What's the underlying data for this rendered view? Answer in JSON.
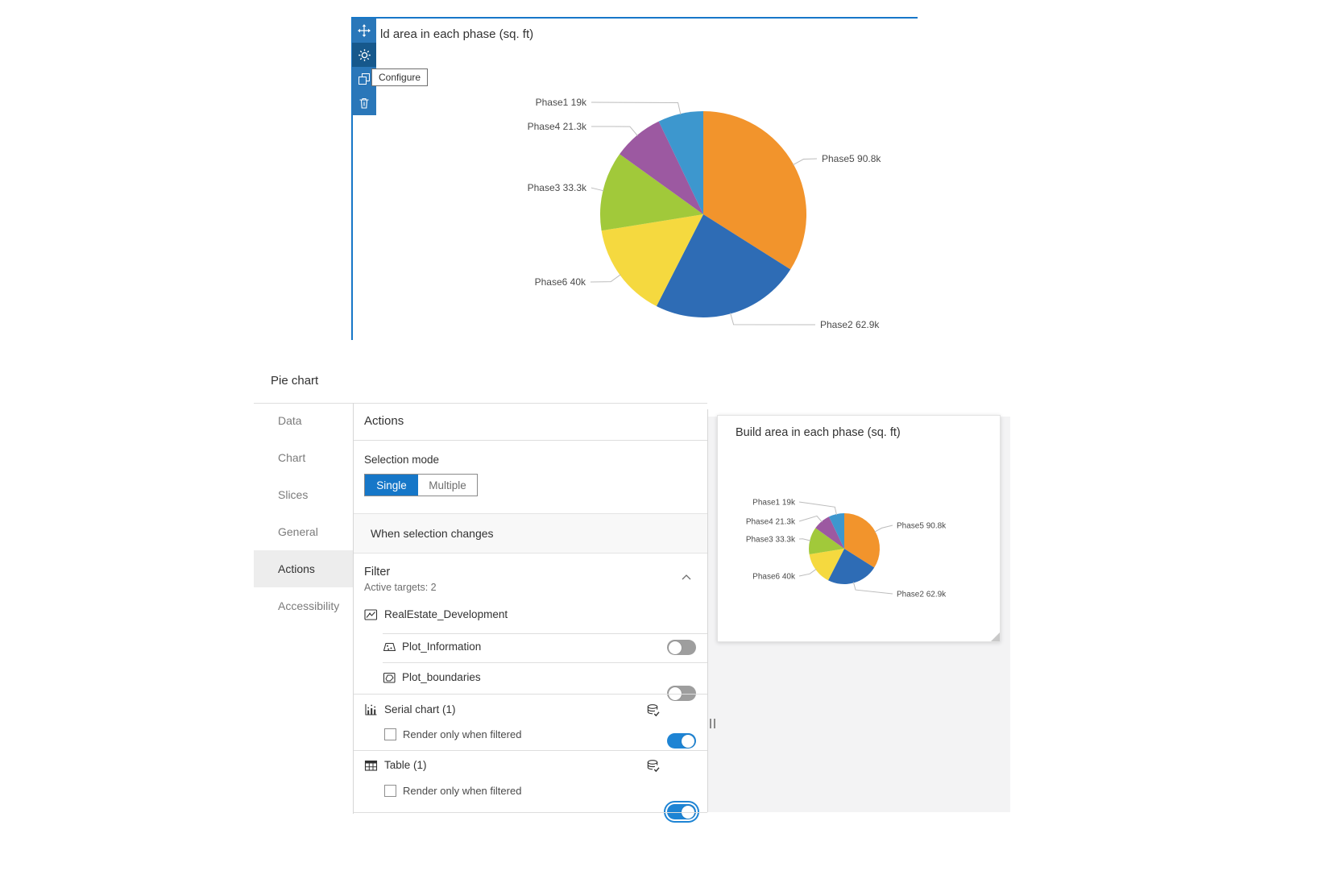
{
  "widget": {
    "title": "ld area in each phase (sq. ft)",
    "tooltip": "Configure"
  },
  "chart_data": {
    "type": "pie",
    "title": "Build area in each phase (sq. ft)",
    "start_angle_deg": 0,
    "direction": "clockwise",
    "legend": "none",
    "slices": [
      {
        "name": "Phase5",
        "value": 90.8,
        "label": "Phase5 90.8k",
        "color": "#F2942C"
      },
      {
        "name": "Phase2",
        "value": 62.9,
        "label": "Phase2 62.9k",
        "color": "#2E6CB5"
      },
      {
        "name": "Phase6",
        "value": 40.0,
        "label": "Phase6 40k",
        "color": "#F5D93F"
      },
      {
        "name": "Phase3",
        "value": 33.3,
        "label": "Phase3 33.3k",
        "color": "#A1C93A"
      },
      {
        "name": "Phase4",
        "value": 21.3,
        "label": "Phase4 21.3k",
        "color": "#9C59A1"
      },
      {
        "name": "Phase1",
        "value": 19.0,
        "label": "Phase1 19k",
        "color": "#3D97CE"
      }
    ]
  },
  "config_panel": {
    "heading": "Pie chart",
    "tabs": [
      {
        "label": "Data",
        "selected": false
      },
      {
        "label": "Chart",
        "selected": false
      },
      {
        "label": "Slices",
        "selected": false
      },
      {
        "label": "General",
        "selected": false
      },
      {
        "label": "Actions",
        "selected": true
      },
      {
        "label": "Accessibility",
        "selected": false
      }
    ],
    "section_title": "Actions",
    "selection_mode": {
      "label": "Selection mode",
      "options": [
        {
          "label": "Single",
          "selected": true
        },
        {
          "label": "Multiple",
          "selected": false
        }
      ]
    },
    "when_selection_changes": "When selection changes",
    "filter": {
      "title": "Filter",
      "active_targets": "Active targets: 2",
      "source_layer": "RealEstate_Development",
      "targets": [
        {
          "label": "Plot_Information",
          "enabled": false,
          "focused": false
        },
        {
          "label": "Plot_boundaries",
          "enabled": false,
          "focused": false
        },
        {
          "label": "Serial chart (1)",
          "enabled": true,
          "focused": false,
          "checkbox_label": "Render only when filtered",
          "checkbox_checked": false
        },
        {
          "label": "Table (1)",
          "enabled": true,
          "focused": true,
          "checkbox_label": "Render only when filtered",
          "checkbox_checked": false
        }
      ]
    }
  },
  "preview": {
    "title": "Build area in each phase (sq. ft)"
  }
}
